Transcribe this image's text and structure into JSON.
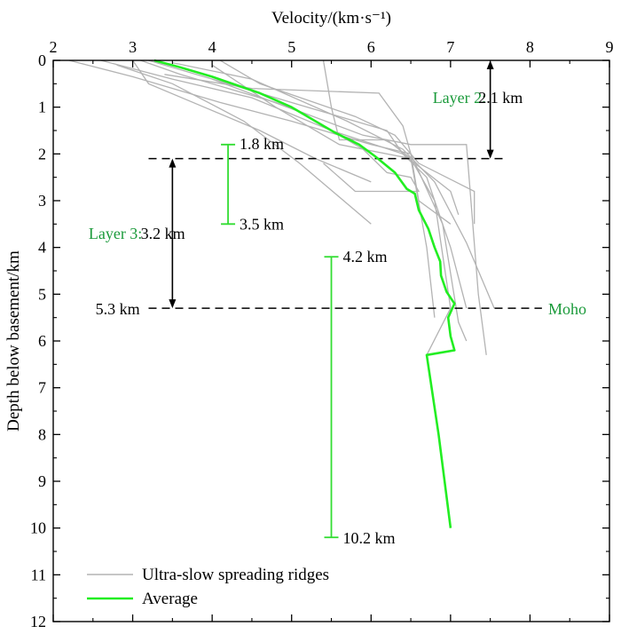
{
  "chart_data": {
    "type": "line",
    "xlabel": "Velocity/(km·s⁻¹)",
    "ylabel": "Depth below basement/km",
    "xlim": [
      2,
      9
    ],
    "ylim": [
      0,
      12
    ],
    "x_ticks": [
      "2",
      "3",
      "4",
      "5",
      "6",
      "7",
      "8",
      "9"
    ],
    "y_ticks": [
      "0",
      "1",
      "2",
      "3",
      "4",
      "5",
      "6",
      "7",
      "8",
      "9",
      "10",
      "11",
      "12"
    ],
    "x_axis_position": "top",
    "y_inverted": true,
    "grid": false,
    "legend": {
      "placement": "bottom-left",
      "entries": [
        "Ultra-slow spreading ridges",
        "Average"
      ]
    },
    "colors": {
      "ridges": "#b3b3b3",
      "average": "#22ee22",
      "green_annotation": "#1a9a3a",
      "range_bar": "#33dd33"
    },
    "series": [
      {
        "name": "Average",
        "points": [
          [
            3.27,
            0.0
          ],
          [
            3.6,
            0.15
          ],
          [
            4.0,
            0.35
          ],
          [
            4.6,
            0.7
          ],
          [
            5.0,
            1.0
          ],
          [
            5.3,
            1.3
          ],
          [
            5.55,
            1.55
          ],
          [
            5.85,
            1.8
          ],
          [
            6.05,
            2.05
          ],
          [
            6.3,
            2.4
          ],
          [
            6.45,
            2.75
          ],
          [
            6.55,
            2.85
          ],
          [
            6.6,
            3.2
          ],
          [
            6.72,
            3.6
          ],
          [
            6.8,
            4.0
          ],
          [
            6.87,
            4.3
          ],
          [
            6.88,
            4.6
          ],
          [
            6.95,
            4.95
          ],
          [
            7.05,
            5.2
          ],
          [
            6.97,
            5.5
          ],
          [
            7.0,
            5.9
          ],
          [
            7.05,
            6.2
          ],
          [
            6.7,
            6.3
          ],
          [
            6.85,
            8.0
          ],
          [
            7.0,
            10.0
          ]
        ]
      }
    ],
    "ridge_profiles": [
      [
        [
          2.2,
          0.0
        ],
        [
          3.0,
          0.35
        ],
        [
          4.1,
          0.9
        ],
        [
          5.0,
          1.3
        ],
        [
          6.0,
          1.8
        ],
        [
          6.5,
          2.0
        ],
        [
          6.6,
          3.0
        ],
        [
          7.0,
          3.5
        ]
      ],
      [
        [
          2.6,
          0.0
        ],
        [
          3.5,
          0.4
        ],
        [
          4.5,
          0.8
        ],
        [
          5.5,
          1.5
        ],
        [
          6.4,
          2.0
        ],
        [
          6.7,
          2.5
        ],
        [
          7.0,
          4.0
        ],
        [
          7.2,
          5.3
        ]
      ],
      [
        [
          3.0,
          0.0
        ],
        [
          3.2,
          0.5
        ],
        [
          3.9,
          1.0
        ],
        [
          4.6,
          1.5
        ],
        [
          5.3,
          2.1
        ],
        [
          6.0,
          2.6
        ]
      ],
      [
        [
          3.1,
          0.0
        ],
        [
          3.6,
          0.3
        ],
        [
          4.8,
          0.9
        ],
        [
          5.9,
          1.6
        ],
        [
          6.5,
          1.8
        ],
        [
          7.2,
          1.8
        ],
        [
          7.35,
          5.0
        ],
        [
          7.45,
          6.3
        ]
      ],
      [
        [
          3.2,
          0.0
        ],
        [
          4.2,
          0.5
        ],
        [
          5.2,
          1.0
        ],
        [
          6.2,
          1.5
        ],
        [
          6.4,
          2.0
        ],
        [
          7.0,
          2.8
        ],
        [
          7.1,
          3.3
        ]
      ],
      [
        [
          4.1,
          0.0
        ],
        [
          4.6,
          0.5
        ],
        [
          5.8,
          1.2
        ],
        [
          6.3,
          1.6
        ],
        [
          6.6,
          2.2
        ],
        [
          7.3,
          2.8
        ],
        [
          7.3,
          3.5
        ]
      ],
      [
        [
          4.0,
          0.1
        ],
        [
          4.8,
          1.0
        ],
        [
          5.6,
          1.8
        ],
        [
          6.5,
          2.1
        ],
        [
          6.8,
          3.0
        ],
        [
          7.0,
          5.3
        ],
        [
          6.7,
          6.3
        ]
      ],
      [
        [
          5.4,
          0.0
        ],
        [
          5.5,
          1.0
        ],
        [
          5.6,
          1.7
        ],
        [
          6.2,
          1.7
        ],
        [
          6.5,
          2.1
        ],
        [
          6.7,
          4.0
        ],
        [
          6.8,
          5.5
        ]
      ],
      [
        [
          2.8,
          0.1
        ],
        [
          3.5,
          0.5
        ],
        [
          4.4,
          1.3
        ],
        [
          5.1,
          2.2
        ],
        [
          6.0,
          3.5
        ]
      ],
      [
        [
          3.5,
          0.05
        ],
        [
          4.5,
          0.4
        ],
        [
          5.7,
          1.3
        ],
        [
          6.4,
          1.9
        ],
        [
          6.8,
          2.6
        ],
        [
          7.2,
          3.9
        ],
        [
          7.55,
          5.3
        ]
      ],
      [
        [
          4.0,
          0.4
        ],
        [
          5.1,
          1.1
        ],
        [
          5.9,
          1.9
        ],
        [
          6.2,
          2.4
        ],
        [
          6.5,
          2.5
        ],
        [
          6.6,
          2.8
        ],
        [
          5.8,
          2.8
        ],
        [
          5.4,
          2.2
        ]
      ],
      [
        [
          3.4,
          0.3
        ],
        [
          4.5,
          0.6
        ],
        [
          6.1,
          0.7
        ],
        [
          6.4,
          1.4
        ],
        [
          6.5,
          2.0
        ],
        [
          6.9,
          3.5
        ],
        [
          7.1,
          5.6
        ],
        [
          7.2,
          6.0
        ]
      ]
    ],
    "annotations": {
      "layer2": {
        "label": "Layer 2:",
        "thickness": "2.1 km",
        "top": 0.0,
        "bottom": 2.1,
        "x": 7.5
      },
      "layer3": {
        "label": "Layer 3:",
        "thickness": "3.2 km",
        "top": 2.1,
        "bottom": 5.3,
        "x": 3.5
      },
      "boundary_layer2": {
        "depth": 2.1
      },
      "moho": {
        "label": "Moho",
        "depth": 5.3,
        "depth_label": "5.3 km"
      },
      "range_layer2_3": {
        "x": 4.2,
        "top": 1.8,
        "bottom": 3.5,
        "top_label": "1.8 km",
        "bottom_label": "3.5 km"
      },
      "range_crust": {
        "x": 5.5,
        "top": 4.2,
        "bottom": 10.2,
        "top_label": "4.2 km",
        "bottom_label": "10.2 km"
      }
    }
  }
}
